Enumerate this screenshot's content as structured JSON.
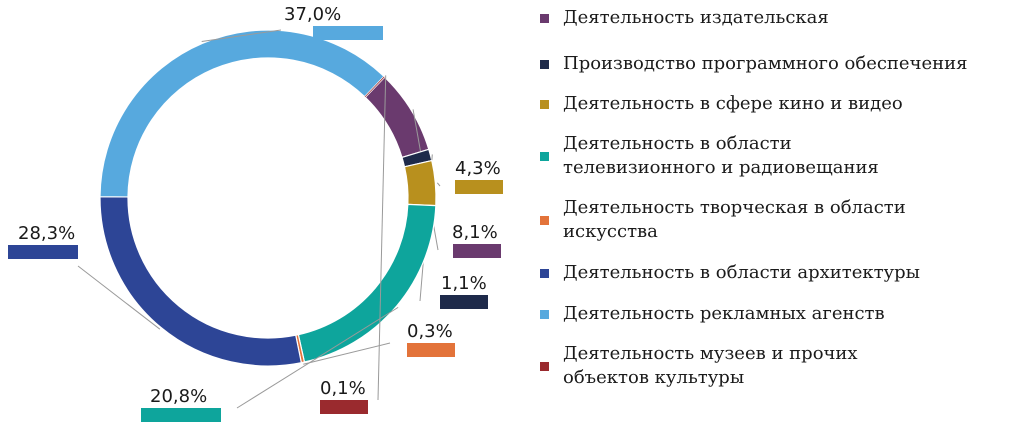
{
  "chart_data": {
    "type": "pie",
    "donut": true,
    "legend_position": "right",
    "slices": [
      {
        "label": "Деятельность издательская",
        "value": 8.1,
        "value_label": "8,1%",
        "color": "#6a3a6e"
      },
      {
        "label": "Производство программного обеспечения",
        "value": 1.1,
        "value_label": "1,1%",
        "color": "#1e2a4a"
      },
      {
        "label": "Деятельность в сфере кино и видео",
        "value": 4.3,
        "value_label": "4,3%",
        "color": "#b8901e"
      },
      {
        "label": "Деятельность в области телевизионного и радиовещания",
        "value": 20.8,
        "value_label": "20,8%",
        "color": "#0ea59c"
      },
      {
        "label": "Деятельность творческая в области искусства",
        "value": 0.3,
        "value_label": "0,3%",
        "color": "#e3733a"
      },
      {
        "label": "Деятельность в области архитектуры",
        "value": 28.3,
        "value_label": "28,3%",
        "color": "#2d4596"
      },
      {
        "label": "Деятельность рекламных агенств",
        "value": 37.0,
        "value_label": "37,0%",
        "color": "#57a9de"
      },
      {
        "label": "Деятельность музеев и прочих объектов культуры",
        "value": 0.1,
        "value_label": "0,1%",
        "color": "#9a2a2e"
      }
    ],
    "legend": [
      {
        "lines": [
          "Деятельность издательская"
        ],
        "color": "#6a3a6e"
      },
      {
        "lines": [
          "Производство программного обеспечения"
        ],
        "color": "#1e2a4a"
      },
      {
        "lines": [
          "Деятельность в сфере кино и видео"
        ],
        "color": "#b8901e"
      },
      {
        "lines": [
          "Деятельность в области",
          "телевизионного и радиовещания"
        ],
        "color": "#0ea59c"
      },
      {
        "lines": [
          "Деятельность творческая в области",
          "искусства"
        ],
        "color": "#e3733a"
      },
      {
        "lines": [
          "Деятельность в области архитектуры"
        ],
        "color": "#2d4596"
      },
      {
        "lines": [
          "Деятельность рекламных агенств"
        ],
        "color": "#57a9de"
      },
      {
        "lines": [
          "Деятельность музеев и прочих",
          "объектов культуры"
        ],
        "color": "#9a2a2e"
      }
    ]
  }
}
